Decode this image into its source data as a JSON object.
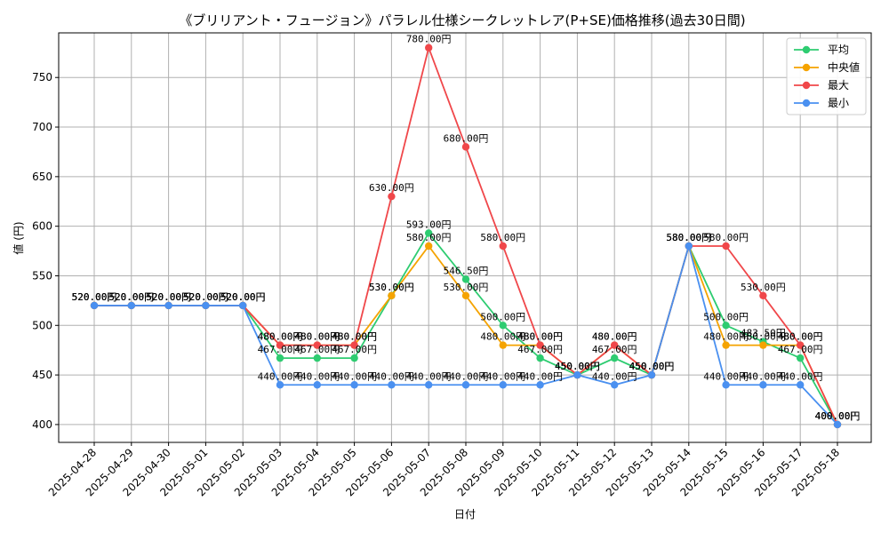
{
  "chart_data": {
    "type": "line",
    "title": "《ブリリアント・フュージョン》パラレル仕様シークレットレア(P+SE)価格推移(過去30日間)",
    "xlabel": "日付",
    "ylabel": "値 (円)",
    "ylim": [
      382,
      795
    ],
    "yticks": [
      400,
      450,
      500,
      550,
      600,
      650,
      700,
      750
    ],
    "grid": true,
    "legend_position": "top-right",
    "categories": [
      "2025-04-28",
      "2025-04-29",
      "2025-04-30",
      "2025-05-01",
      "2025-05-02",
      "2025-05-03",
      "2025-05-04",
      "2025-05-05",
      "2025-05-06",
      "2025-05-07",
      "2025-05-08",
      "2025-05-09",
      "2025-05-10",
      "2025-05-11",
      "2025-05-12",
      "2025-05-13",
      "2025-05-14",
      "2025-05-15",
      "2025-05-16",
      "2025-05-17",
      "2025-05-18"
    ],
    "series": [
      {
        "name": "平均",
        "color": "#2ecc71",
        "values": [
          520,
          520,
          520,
          520,
          520,
          467,
          467,
          467,
          530,
          593,
          546.5,
          500,
          467,
          450,
          467,
          450,
          580,
          500,
          483.5,
          467,
          400
        ],
        "labels": [
          "520.00円",
          "520.00円",
          "520.00円",
          "520.00円",
          "520.00円",
          "467.00円",
          "467.00円",
          "467.00円",
          "530.00円",
          "593.00円",
          "546.50円",
          "500.00円",
          "467.00円",
          "450.00円",
          "467.00円",
          "450.00円",
          "580.00円",
          "500.00円",
          "483.50円",
          "467.00円",
          "400.00円"
        ]
      },
      {
        "name": "中央値",
        "color": "#f5a300",
        "values": [
          520,
          520,
          520,
          520,
          520,
          480,
          480,
          480,
          530,
          580,
          530,
          480,
          480,
          450,
          480,
          450,
          580,
          480,
          480,
          480,
          400
        ],
        "labels": [
          "520.00円",
          "520.00円",
          "520.00円",
          "520.00円",
          "520.00円",
          "480.00円",
          "480.00円",
          "480.00円",
          "530.00円",
          "580.00円",
          "530.00円",
          "480.00円",
          "480.00円",
          "450.00円",
          "480.00円",
          "450.00円",
          "580.00円",
          "480.00円",
          "480.00円",
          "480.00円",
          "400.00円"
        ]
      },
      {
        "name": "最大",
        "color": "#f0474a",
        "values": [
          520,
          520,
          520,
          520,
          520,
          480,
          480,
          480,
          630,
          780,
          680,
          580,
          480,
          450,
          480,
          450,
          580,
          580,
          530,
          480,
          400
        ],
        "labels": [
          "520.00円",
          "520.00円",
          "520.00円",
          "520.00円",
          "520.00円",
          "480.00円",
          "480.00円",
          "480.00円",
          "630.00円",
          "780.00円",
          "680.00円",
          "580.00円",
          "480.00円",
          "450.00円",
          "480.00円",
          "450.00円",
          "580.00円",
          "580.00円",
          "530.00円",
          "480.00円",
          "400.00円"
        ]
      },
      {
        "name": "最小",
        "color": "#4a90f0",
        "values": [
          520,
          520,
          520,
          520,
          520,
          440,
          440,
          440,
          440,
          440,
          440,
          440,
          440,
          450,
          440,
          450,
          580,
          440,
          440,
          440,
          400
        ],
        "labels": [
          "520.00円",
          "520.00円",
          "520.00円",
          "520.00円",
          "520.00円",
          "440.00円",
          "440.00円",
          "440.00円",
          "440.00円",
          "440.00円",
          "440.00円",
          "440.00円",
          "440.00円",
          "450.00円",
          "440.00円",
          "450.00円",
          "580.00円",
          "440.00円",
          "440.00円",
          "440.00円",
          "400.00円"
        ]
      }
    ]
  }
}
